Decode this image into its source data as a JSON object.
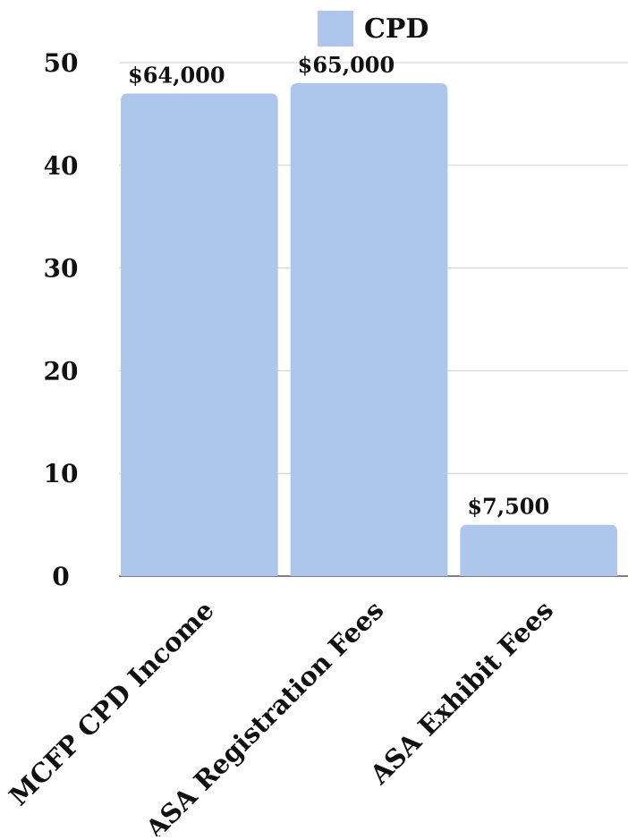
{
  "chart_data": {
    "type": "bar",
    "title": "",
    "xlabel": "",
    "ylabel": "",
    "categories": [
      "MCFP CPD Income",
      "ASA Registration Fees",
      "ASA Exhibit Fees"
    ],
    "series": [
      {
        "name": "CPD",
        "values": [
          47,
          48,
          5
        ],
        "data_labels": [
          "$64,000",
          "$65,000",
          "$7,500"
        ],
        "color": "#aec6eb"
      }
    ],
    "ylim": [
      0,
      50
    ],
    "yticks": [
      0,
      10,
      20,
      30,
      40,
      50
    ],
    "grid": true,
    "legend_position": "top-right"
  }
}
